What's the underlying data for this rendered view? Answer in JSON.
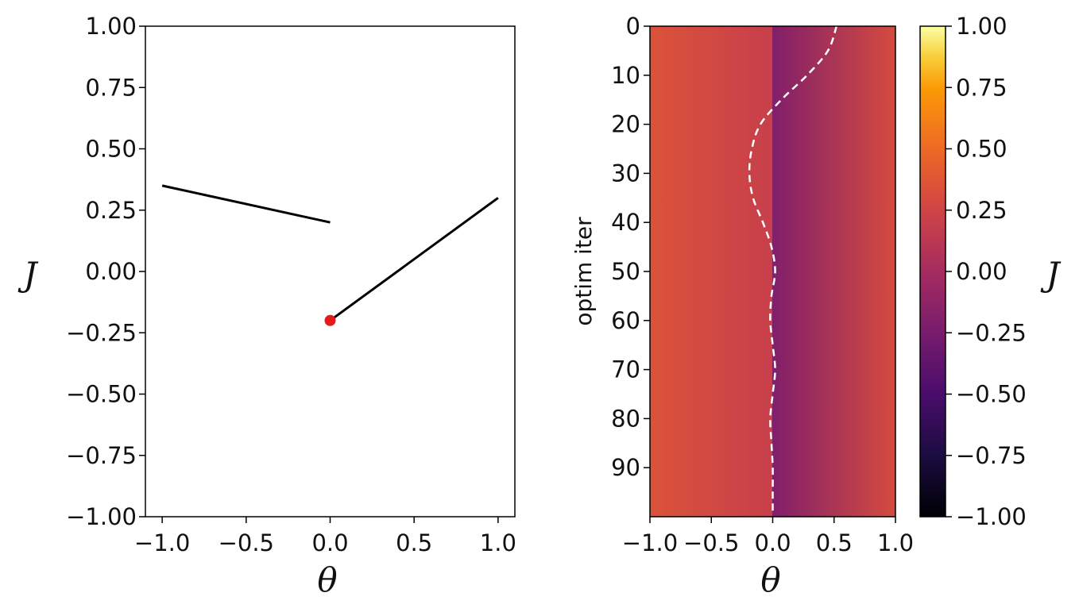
{
  "chart_data": [
    {
      "type": "line",
      "xlabel": "θ",
      "ylabel": "J",
      "xlim": [
        -1.1,
        1.1
      ],
      "ylim": [
        -1.0,
        1.0
      ],
      "xticks": [
        "−1.0",
        "−0.5",
        "0.0",
        "0.5",
        "1.0"
      ],
      "yticks": [
        "−1.00",
        "−0.75",
        "−0.50",
        "−0.25",
        "0.00",
        "0.25",
        "0.50",
        "0.75",
        "1.00"
      ],
      "series": [
        {
          "values": [
            [
              -1.0,
              0.35
            ],
            [
              0.0,
              0.2
            ]
          ],
          "color": "#000000"
        },
        {
          "values": [
            [
              0.0,
              -0.2
            ],
            [
              1.0,
              0.3
            ]
          ],
          "color": "#000000"
        }
      ],
      "markers": [
        {
          "x": 0.0,
          "y": -0.2,
          "color": "#e41a1c"
        }
      ],
      "grid": false
    },
    {
      "type": "heatmap",
      "xlabel": "θ",
      "ylabel": "optim iter",
      "xlim": [
        -1.0,
        1.0
      ],
      "ylim": [
        100,
        0
      ],
      "xticks": [
        "−1.0",
        "−0.5",
        "0.0",
        "0.5",
        "1.0"
      ],
      "yticks": [
        "0",
        "10",
        "20",
        "30",
        "40",
        "50",
        "60",
        "70",
        "80",
        "90"
      ],
      "colormap": "inferno",
      "value_ranges": [
        {
          "theta": [
            -1.0,
            0.0
          ],
          "J": [
            0.35,
            0.2
          ]
        },
        {
          "theta": [
            0.0,
            1.0
          ],
          "J": [
            -0.2,
            0.3
          ]
        }
      ],
      "trajectory": {
        "style": "dashed",
        "color": "#ffffff",
        "iter": [
          0,
          5,
          10,
          15,
          20,
          25,
          30,
          35,
          40,
          45,
          50,
          55,
          60,
          65,
          70,
          75,
          80,
          85,
          90,
          95,
          99
        ],
        "theta": [
          0.52,
          0.45,
          0.28,
          0.07,
          -0.1,
          -0.17,
          -0.19,
          -0.16,
          -0.08,
          -0.01,
          0.02,
          -0.01,
          -0.02,
          0.0,
          0.02,
          0.0,
          -0.02,
          -0.01,
          0.0,
          0.0,
          0.0
        ]
      },
      "colorbar": {
        "label": "J",
        "range": [
          -1.0,
          1.0
        ],
        "ticks": [
          "−1.00",
          "−0.75",
          "−0.50",
          "−0.25",
          "0.00",
          "0.25",
          "0.50",
          "0.75",
          "1.00"
        ]
      }
    }
  ]
}
